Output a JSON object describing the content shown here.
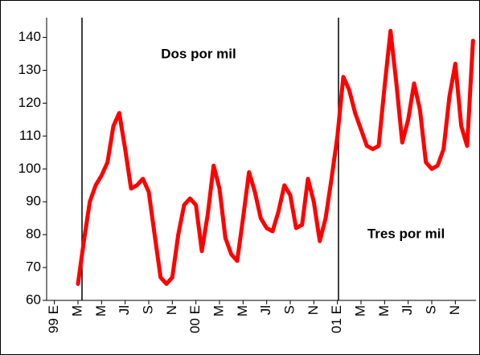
{
  "chart_data": {
    "type": "line",
    "annotations": [
      "Dos por mil",
      "Tres por mil"
    ],
    "categories": [
      "99 E",
      null,
      null,
      null,
      "M",
      null,
      null,
      null,
      "M",
      null,
      null,
      null,
      "Jl",
      null,
      null,
      null,
      "S",
      null,
      null,
      null,
      "N",
      null,
      null,
      null,
      "00 E",
      null,
      null,
      null,
      "M",
      null,
      null,
      null,
      "M",
      null,
      null,
      null,
      "Jl",
      null,
      null,
      null,
      "S",
      null,
      null,
      null,
      "N",
      null,
      null,
      null,
      "01 E",
      null,
      null,
      null,
      "M",
      null,
      null,
      null,
      "M",
      null,
      null,
      null,
      "Jl",
      null,
      null,
      null,
      "S",
      null,
      null,
      null,
      "N",
      null,
      null,
      null
    ],
    "values": [
      null,
      null,
      null,
      null,
      65,
      78,
      90,
      95,
      98,
      102,
      113,
      117,
      106,
      94,
      95,
      97,
      93,
      80,
      67,
      65,
      67,
      80,
      89,
      91,
      89,
      75,
      86,
      101,
      94,
      79,
      74,
      72,
      85,
      99,
      93,
      85,
      82,
      81,
      87,
      95,
      92,
      82,
      83,
      97,
      90,
      78,
      85,
      97,
      110,
      128,
      124,
      117,
      112,
      107,
      106,
      107,
      125,
      142,
      126,
      108,
      115,
      126,
      118,
      102,
      100,
      101,
      106,
      122,
      132,
      113,
      107,
      139
    ],
    "color": "#ff0000",
    "ylim": [
      60,
      146
    ],
    "yticks": [
      60,
      70,
      80,
      90,
      100,
      110,
      120,
      130,
      140
    ]
  }
}
